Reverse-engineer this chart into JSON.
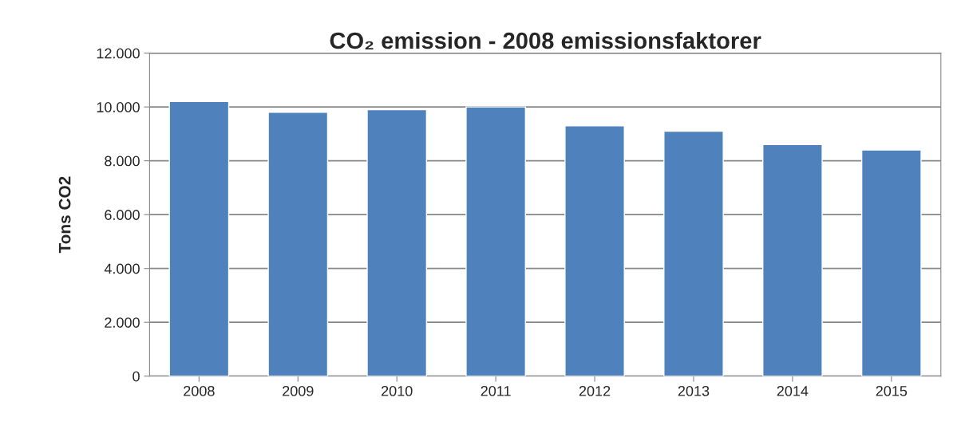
{
  "chart_data": {
    "type": "bar",
    "title": "CO₂ emission - 2008 emissionsfaktorer",
    "ylabel": "Tons CO2",
    "categories": [
      "2008",
      "2009",
      "2010",
      "2011",
      "2012",
      "2013",
      "2014",
      "2015"
    ],
    "values": [
      10200,
      9800,
      9900,
      10000,
      9300,
      9100,
      8600,
      8400
    ],
    "color": "#4f81bd",
    "ylim": [
      0,
      12000
    ],
    "yticks": [
      0,
      {
        "value": 2000,
        "label": "2.000"
      },
      {
        "value": 4000,
        "label": "4.000"
      },
      {
        "value": 6000,
        "label": "6.000"
      },
      {
        "value": 8000,
        "label": "8.000"
      },
      {
        "value": 10000,
        "label": "10.000"
      },
      {
        "value": 12000,
        "label": "12.000"
      }
    ],
    "grid": "y"
  }
}
